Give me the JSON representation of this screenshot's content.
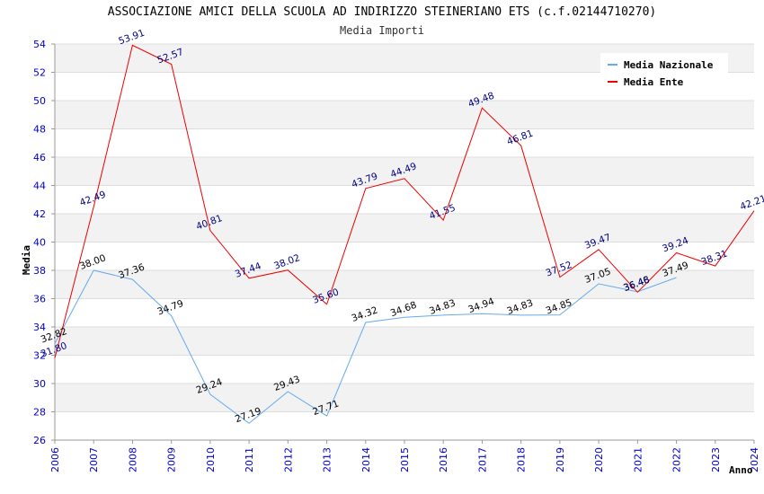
{
  "chart_data": {
    "type": "line",
    "title": "ASSOCIAZIONE AMICI DELLA SCUOLA AD INDIRIZZO STEINERIANO ETS (c.f.02144710270)",
    "subtitle": "Media Importi",
    "xlabel": "Anno",
    "ylabel": "Media",
    "ylim": [
      26,
      54
    ],
    "y_ticks": [
      26,
      28,
      30,
      32,
      34,
      36,
      38,
      40,
      42,
      44,
      46,
      48,
      50,
      52,
      54
    ],
    "x": [
      "2006",
      "2007",
      "2008",
      "2009",
      "2010",
      "2011",
      "2012",
      "2013",
      "2014",
      "2015",
      "2016",
      "2017",
      "2018",
      "2019",
      "2020",
      "2021",
      "2022",
      "2023",
      "2024"
    ],
    "legend_position": "top-right",
    "grid": true,
    "series": [
      {
        "name": "Media Nazionale",
        "color": "#66aaee",
        "label_color": "#000000",
        "values": [
          32.82,
          38.0,
          37.36,
          34.79,
          29.24,
          27.19,
          29.43,
          27.71,
          34.32,
          34.68,
          34.83,
          34.94,
          34.83,
          34.85,
          37.05,
          36.48,
          37.49,
          null,
          null
        ],
        "labels": [
          "32.82",
          "38.00",
          "37.36",
          "34.79",
          "29.24",
          "27.19",
          "29.43",
          "27.71",
          "34.32",
          "34.68",
          "34.83",
          "34.94",
          "34.83",
          "34.85",
          "37.05",
          "36.48",
          "37.49",
          "",
          ""
        ]
      },
      {
        "name": "Media Ente",
        "color": "#ee0000",
        "label_color": "#000080",
        "values": [
          31.8,
          42.49,
          53.91,
          52.57,
          40.81,
          37.44,
          38.02,
          35.6,
          43.79,
          44.49,
          41.55,
          49.48,
          46.81,
          37.52,
          39.47,
          36.46,
          39.24,
          38.31,
          42.21
        ],
        "labels": [
          "31.80",
          "42.49",
          "53.91",
          "52.57",
          "40.81",
          "37.44",
          "38.02",
          "35.60",
          "43.79",
          "44.49",
          "41.55",
          "49.48",
          "46.81",
          "37.52",
          "39.47",
          "36.46",
          "39.24",
          "38.31",
          "42.21"
        ]
      }
    ]
  }
}
